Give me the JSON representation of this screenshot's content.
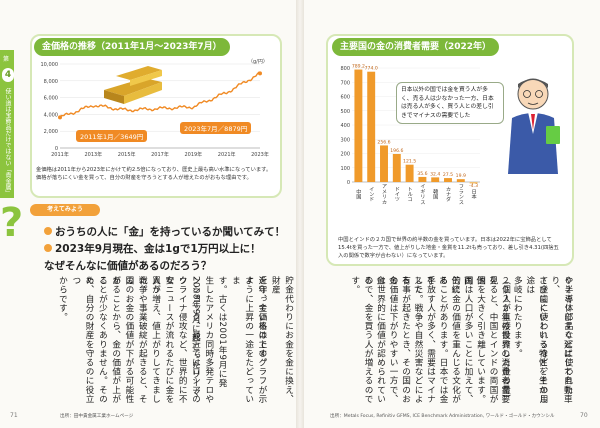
{
  "left_page": {
    "chapter_tab": {
      "chapter": "第",
      "number": "4",
      "label": "章",
      "text": "使い道は宝飾品だけではない「貴金属」"
    },
    "gold_chart": {
      "title": "金価格の推移（2011年1月〜2023年7月）",
      "unit": "（g/円）",
      "callout_start": "2011年1月／3649円",
      "callout_end": "2023年7月／8879円",
      "note": "金価格は2011年から2023年にかけて約2.5倍になっており、歴史上最も高い水準になっています。価格が落ちにくい金を買って、自分の財産を守ろうとする人が増えたのがおもな理由です。"
    },
    "think_label": "考えてみよう",
    "questions": [
      "おうちの人に「金」を持っているか聞いてみて！",
      "2023年9月現在、金は1gで1万円以上に！",
      "なぜそんなに価値があるのだろう？"
    ],
    "body_columns": [
      "貯金代わりにお金を金に換え、財産",
      "を守っているのです。",
      "近年、金価格は上のグラフが示す",
      "ように上昇の一途をたどっていま",
      "す。古くは2001年9月に発",
      "生したアメリカ同時多発テロや",
      "2008年9月に起こったリーマ",
      "ンショック、最近ではロシアのウ",
      "クライナ侵攻など、世界的に不安",
      "なニュースが流れるたびに金を買う",
      "人が増え、値上がりしてきました。",
      "戦争や事業破綻が起きると、その",
      "国のお金の価値が下がる可能性が",
      "あることから、金の価値が上がる",
      "ことが少なくありません。そのた",
      "め、自分の財産を守るのに役立つ",
      "からです。"
    ],
    "footer": "出所：田中貴金属工業ホームページ",
    "page_number": "71"
  },
  "right_page": {
    "demand_chart_title": "主要国の金の消費者需要（2022年）",
    "speech_bubble": "日本以外の国では金を買う人が多く、売る人は少なかった一方、日本は売る人が多く、買う人との差し引きでマイナスの需要でした",
    "note": "中国とインドの２カ国で世界の約半数の金を買っています。日本は2022年に宝飾品として15.4tを買った一方で、値上がりした地金・金貨を11.2tも売っており、差し引き4.31(四捨五入の関係で数字が合わない）になっています。",
    "body_columns": [
      "０２ミリにすぐ延ばして自動車",
      "や半導体部品などに使われたり、",
      "さびにくいという特性を生かし",
      "て金歯に使われるなど、その用途は",
      "多岐にわたります。",
      "２０２２年の世界の消費者需要",
      "（個人が直接投資した金の量）を",
      "見ると、中国とインドの両国が他",
      "国を大きく引き離しています。両",
      "国は人口が多いことに加えて、伝統",
      "的に金の価値を重んじる文化があ",
      "ることがあります。日本では金を",
      "手放す人が多く、需要はマイナスで",
      "した。戦争や自然災害などによる",
      "有事が起きたとき、その国のお金",
      "の価値は下がりやすい一方で、金",
      "は世界的に価値が認められている",
      "ので、金を買う人が増えるのです。"
    ],
    "footer": "出所：Metals Focus, Refinitiv GFMS, ICE Benchmark Administration, ワールド・ゴールド・カウンシル",
    "page_number": "70"
  },
  "chart_data": [
    {
      "type": "line",
      "title": "金価格の推移（2011年1月〜2023年7月）",
      "ylabel": "（g/円）",
      "x": [
        "2011年",
        "2013年",
        "2015年",
        "2017年",
        "2019年",
        "2021年",
        "2023年"
      ],
      "values": [
        3649,
        5100,
        4500,
        4700,
        4900,
        6600,
        8879
      ],
      "ylim": [
        0,
        10000
      ],
      "yticks": [
        0,
        2000,
        4000,
        6000,
        8000,
        10000
      ]
    },
    {
      "type": "bar",
      "title": "主要国の金の消費者需要（2022年）",
      "categories": [
        "中国",
        "インド",
        "アメリカ",
        "ドイツ",
        "トルコ",
        "イギリス",
        "韓国",
        "カナダ",
        "フランス",
        "日本"
      ],
      "values": [
        789.2,
        774.0,
        256.6,
        196.6,
        121.5,
        35.6,
        32.4,
        27.5,
        19.9,
        -4.3
      ],
      "ylim": [
        0,
        800
      ],
      "yticks": [
        0,
        100,
        200,
        300,
        400,
        500,
        600,
        700,
        800
      ],
      "colors": {
        "bar": "#f09a2a",
        "japan": "#f4c070"
      }
    }
  ],
  "colors": {
    "accent_green": "#7db83a",
    "accent_orange": "#f2a13a",
    "line_orange": "#f08a24"
  }
}
